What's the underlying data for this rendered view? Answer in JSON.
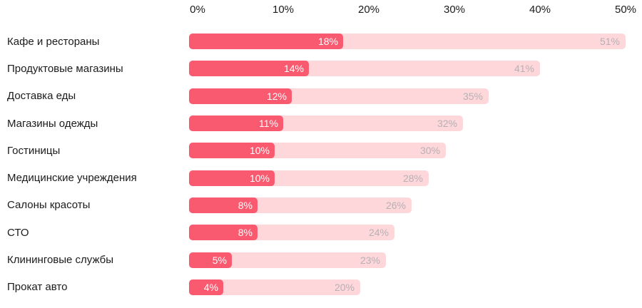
{
  "colors": {
    "active_bar": "#fa5a6f",
    "total_bar": "#fdd7da",
    "axis_text": "#1b1b1b",
    "muted_value_text": "#b8b0b3",
    "bar_value_text": "#ffffff",
    "background": "#ffffff"
  },
  "chart_data": {
    "type": "bar",
    "orientation": "horizontal",
    "title": "",
    "xlabel": "",
    "ylabel": "",
    "grid": false,
    "legend_position": "none",
    "x_axis": {
      "tick_labels": [
        "0%",
        "10%",
        "20%",
        "30%",
        "40%",
        "50%"
      ],
      "tick_values": [
        0,
        10,
        20,
        30,
        40,
        50
      ],
      "range": [
        0,
        50
      ]
    },
    "categories": [
      "Кафе и рестораны",
      "Продуктовые магазины",
      "Доставка еды",
      "Магазины одежды",
      "Гостиницы",
      "Медицинские учреждения",
      "Салоны красоты",
      "СТО",
      "Клининговые службы",
      "Прокат авто"
    ],
    "series": [
      {
        "name": "active-share",
        "values": [
          18,
          14,
          12,
          11,
          10,
          10,
          8,
          8,
          5,
          4
        ]
      },
      {
        "name": "total-share",
        "values": [
          51,
          41,
          35,
          32,
          30,
          28,
          26,
          24,
          23,
          20
        ]
      }
    ],
    "rows": [
      {
        "category": "Кафе и рестораны",
        "value": 18,
        "total": 51,
        "value_label": "18%",
        "total_label": "51%"
      },
      {
        "category": "Продуктовые магазины",
        "value": 14,
        "total": 41,
        "value_label": "14%",
        "total_label": "41%"
      },
      {
        "category": "Доставка еды",
        "value": 12,
        "total": 35,
        "value_label": "12%",
        "total_label": "35%"
      },
      {
        "category": "Магазины одежды",
        "value": 11,
        "total": 32,
        "value_label": "11%",
        "total_label": "32%"
      },
      {
        "category": "Гостиницы",
        "value": 10,
        "total": 30,
        "value_label": "10%",
        "total_label": "30%"
      },
      {
        "category": "Медицинские учреждения",
        "value": 10,
        "total": 28,
        "value_label": "10%",
        "total_label": "28%"
      },
      {
        "category": "Салоны красоты",
        "value": 8,
        "total": 26,
        "value_label": "8%",
        "total_label": "26%"
      },
      {
        "category": "СТО",
        "value": 8,
        "total": 24,
        "value_label": "8%",
        "total_label": "24%"
      },
      {
        "category": "Клининговые службы",
        "value": 5,
        "total": 23,
        "value_label": "5%",
        "total_label": "23%"
      },
      {
        "category": "Прокат авто",
        "value": 4,
        "total": 20,
        "value_label": "4%",
        "total_label": "20%"
      }
    ]
  }
}
